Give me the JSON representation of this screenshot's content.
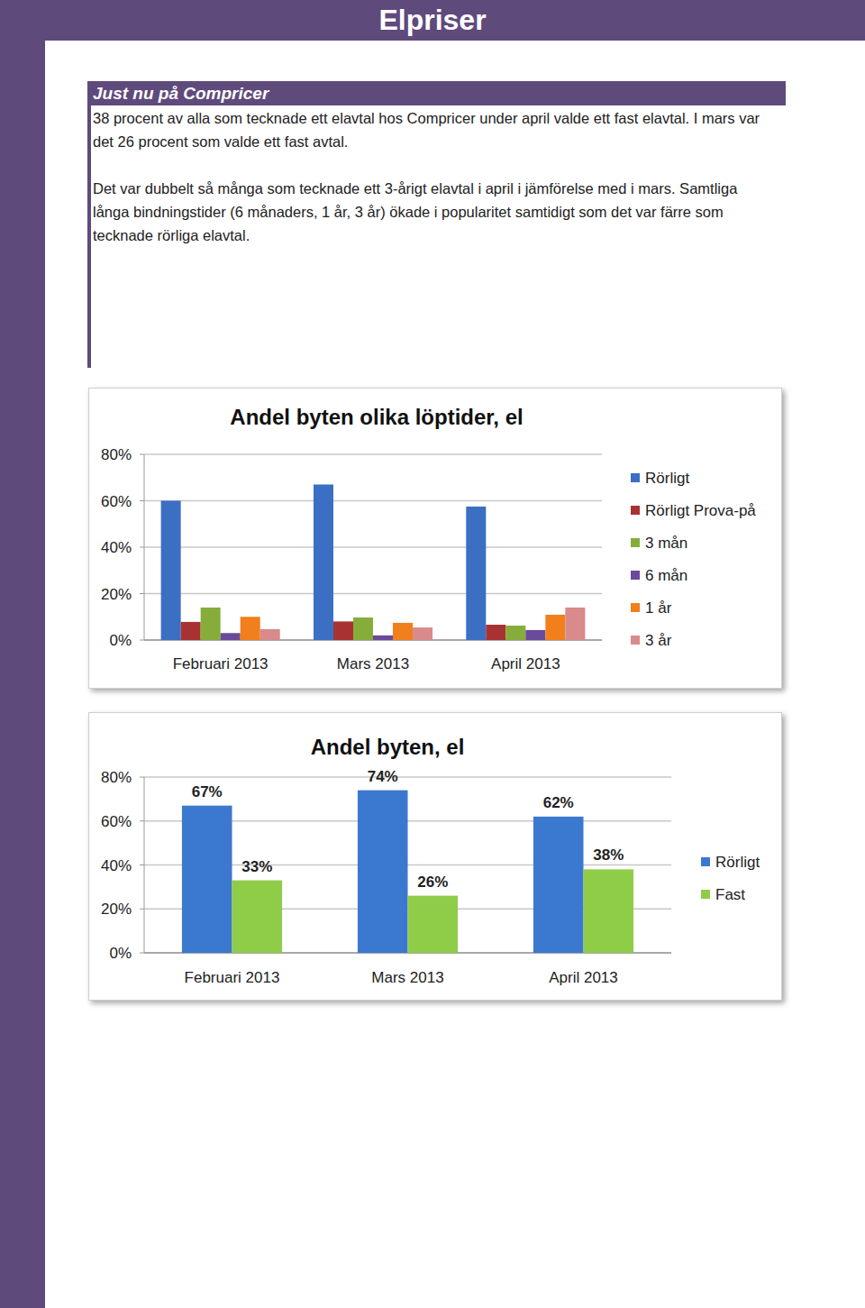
{
  "header": {
    "title": "Elpriser"
  },
  "section": {
    "heading": "Just nu på Compricer",
    "paragraphs": [
      "38 procent av alla som tecknade ett elavtal hos Compricer under april valde ett fast elavtal. I mars var det 26 procent som valde ett fast avtal.",
      "Det var dubbelt så många som tecknade ett 3-årigt elavtal i april i jämförelse med i mars. Samtliga långa bindningstider (6 månaders, 1 år, 3 år) ökade i popularitet samtidigt som det var färre som tecknade rörliga elavtal."
    ]
  },
  "chart_data": [
    {
      "type": "bar",
      "title": "Andel byten olika löptider, el",
      "categories": [
        "Februari 2013",
        "Mars 2013",
        "April 2013"
      ],
      "series": [
        {
          "name": "Rörligt",
          "color": "#3a6fc4",
          "values": [
            60,
            67,
            57.5
          ]
        },
        {
          "name": "Rörligt Prova-på",
          "color": "#a83232",
          "values": [
            7.8,
            8,
            6.6
          ]
        },
        {
          "name": "3 mån",
          "color": "#86ad3a",
          "values": [
            14,
            9.7,
            6.2
          ]
        },
        {
          "name": "6 mån",
          "color": "#6a4a9a",
          "values": [
            3,
            2,
            4.3
          ]
        },
        {
          "name": "1 år",
          "color": "#f07f1c",
          "values": [
            10,
            7.4,
            10.9
          ]
        },
        {
          "name": "3 år",
          "color": "#d98a8a",
          "values": [
            4.7,
            5.4,
            14
          ]
        }
      ],
      "ylim": [
        0,
        80
      ],
      "yticks": [
        {
          "value": 0,
          "label": "0%"
        },
        {
          "value": 20,
          "label": "20%"
        },
        {
          "value": 40,
          "label": "40%"
        },
        {
          "value": 60,
          "label": "60%"
        },
        {
          "value": 80,
          "label": "80%"
        }
      ],
      "grid": true,
      "legend": "right"
    },
    {
      "type": "bar",
      "title": "Andel byten, el",
      "categories": [
        "Februari 2013",
        "Mars 2013",
        "April 2013"
      ],
      "series": [
        {
          "name": "Rörligt",
          "color": "#3b78d0",
          "values": [
            67,
            74,
            62
          ],
          "value_labels": [
            "67%",
            "74%",
            "62%"
          ]
        },
        {
          "name": "Fast",
          "color": "#8fcc48",
          "values": [
            33,
            26,
            38
          ],
          "value_labels": [
            "33%",
            "26%",
            "38%"
          ]
        }
      ],
      "ylim": [
        0,
        80
      ],
      "yticks": [
        {
          "value": 0,
          "label": "0%"
        },
        {
          "value": 20,
          "label": "20%"
        },
        {
          "value": 40,
          "label": "40%"
        },
        {
          "value": 60,
          "label": "60%"
        },
        {
          "value": 80,
          "label": "80%"
        }
      ],
      "grid": true,
      "legend": "right",
      "data_labels": true
    }
  ]
}
